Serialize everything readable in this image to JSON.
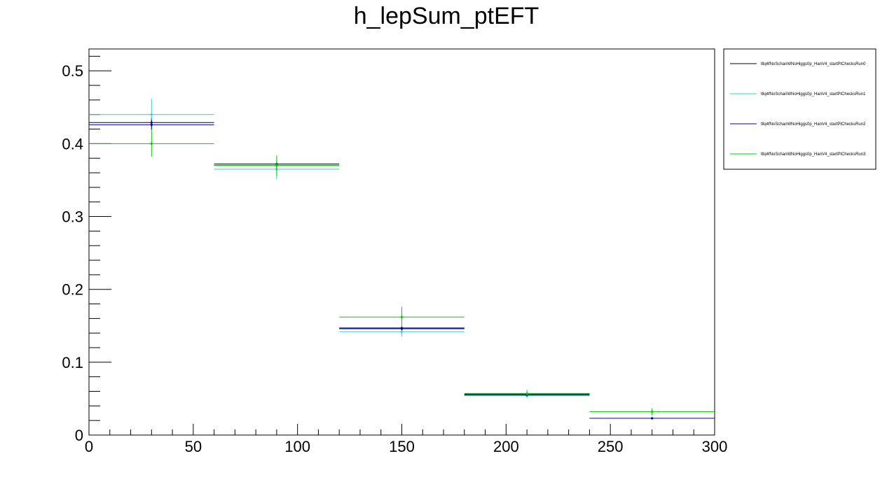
{
  "chart_data": {
    "type": "scatter",
    "title": "h_lepSum_ptEFT",
    "xlabel": "",
    "ylabel": "",
    "xlim": [
      0,
      300
    ],
    "ylim": [
      0,
      0.53
    ],
    "x_ticks": [
      0,
      50,
      100,
      150,
      200,
      250,
      300
    ],
    "y_ticks": [
      0,
      0.1,
      0.2,
      0.3,
      0.4,
      0.5
    ],
    "x_tick_labels": [
      "0",
      "50",
      "100",
      "150",
      "200",
      "250",
      "300"
    ],
    "y_tick_labels": [
      "0",
      "0.1",
      "0.2",
      "0.3",
      "0.4",
      "0.5"
    ],
    "bin_edges": [
      0,
      60,
      120,
      180,
      240,
      300
    ],
    "grid": false,
    "legend_position": "top-right outside",
    "series": [
      {
        "name": "tllq4fNoSchanWNoHiggs0p_HanV4_startPtChecksRun0",
        "color": "#000000",
        "values": [
          0.429,
          0.372,
          0.146,
          0.056,
          0.023
        ],
        "errors": [
          0.007,
          0.004,
          0.003,
          0.002,
          0.001
        ]
      },
      {
        "name": "tllq4fNoSchanWNoHiggs0p_HanV4_startPtChecksRun1",
        "color": "#33ccdd",
        "values": [
          0.44,
          0.365,
          0.142,
          0.054,
          0.023
        ],
        "errors": [
          0.022,
          0.014,
          0.007,
          0.003,
          0.002
        ]
      },
      {
        "name": "tllq4fNoSchanWNoHiggs0p_HanV4_startPtChecksRun2",
        "color": "#0000aa",
        "values": [
          0.426,
          0.37,
          0.147,
          0.055,
          0.023
        ],
        "errors": [
          0.007,
          0.004,
          0.003,
          0.002,
          0.001
        ]
      },
      {
        "name": "tllq4fNoSchanWNoHiggs0p_HanV4_startPtChecksRun3",
        "color": "#00cc00",
        "values": [
          0.4,
          0.37,
          0.162,
          0.057,
          0.032
        ],
        "errors": [
          0.018,
          0.014,
          0.014,
          0.005,
          0.005
        ]
      }
    ]
  }
}
